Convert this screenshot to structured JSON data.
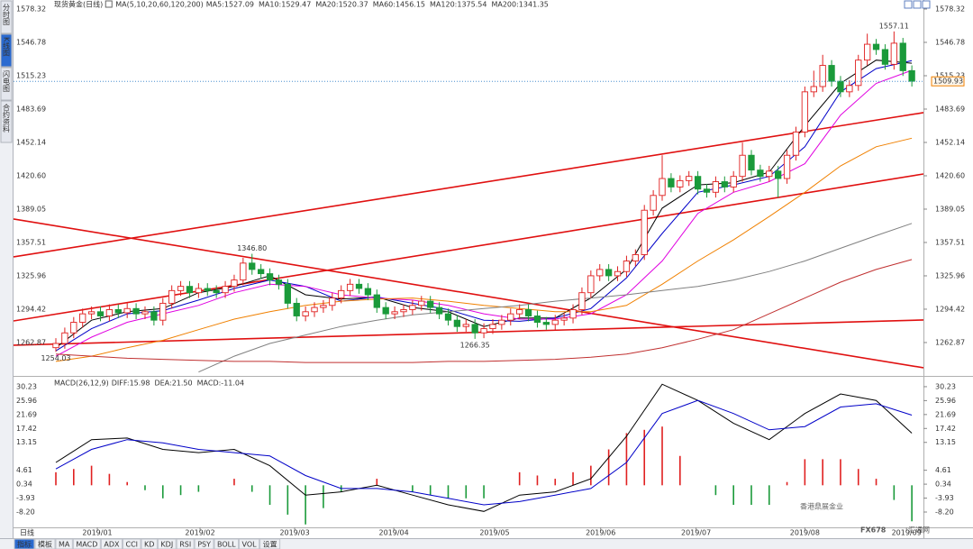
{
  "chart_data": [
    {
      "type": "candlestick",
      "title": "现货黄金(日线)",
      "subtitle": "MA(5,10,20,60,120,200)",
      "xlim": [
        -4.75,
        97.3
      ],
      "ylim": [
        1233,
        1578.32
      ],
      "yticks": [
        1578.32,
        1546.78,
        1515.23,
        1483.69,
        1452.14,
        {
          "value": 1420.6,
          "label": "1420.60"
        },
        1389.05,
        1357.51,
        1325.96,
        1294.42,
        1262.87
      ],
      "grid": false,
      "up_color": "#e02020",
      "down_color": "#1a9a3a",
      "x": [
        0,
        1,
        2,
        3,
        4,
        5,
        6,
        7,
        8,
        9,
        10,
        11,
        12,
        13,
        14,
        15,
        16,
        17,
        18,
        19,
        20,
        21,
        22,
        23,
        24,
        25,
        26,
        27,
        28,
        29,
        30,
        31,
        32,
        33,
        34,
        35,
        36,
        37,
        38,
        39,
        40,
        41,
        42,
        43,
        44,
        45,
        46,
        47,
        48,
        49,
        50,
        51,
        52,
        53,
        54,
        55,
        56,
        57,
        58,
        59,
        60,
        61,
        62,
        63,
        64,
        65,
        66,
        67,
        68,
        69,
        70,
        71,
        72,
        73,
        74,
        75,
        76,
        77,
        78,
        79,
        80,
        81,
        82,
        83,
        84,
        85,
        86,
        87,
        88,
        89,
        90,
        91,
        92,
        93,
        94,
        95,
        96
      ],
      "open": [
        1258,
        1262,
        1272,
        1282,
        1290,
        1292,
        1288,
        1294,
        1291,
        1295,
        1290,
        1292,
        1284,
        1300,
        1312,
        1316,
        1310,
        1314,
        1312,
        1310,
        1316,
        1322,
        1338,
        1332,
        1328,
        1322,
        1318,
        1300,
        1288,
        1292,
        1296,
        1298,
        1305,
        1312,
        1318,
        1314,
        1308,
        1296,
        1290,
        1292,
        1294,
        1298,
        1302,
        1296,
        1290,
        1284,
        1278,
        1280,
        1272,
        1276,
        1280,
        1284,
        1290,
        1294,
        1288,
        1282,
        1280,
        1284,
        1286,
        1294,
        1310,
        1326,
        1332,
        1326,
        1330,
        1340,
        1346,
        1388,
        1402,
        1418,
        1410,
        1416,
        1420,
        1408,
        1405,
        1415,
        1410,
        1420,
        1440,
        1426,
        1420,
        1425,
        1418,
        1440,
        1462,
        1500,
        1505,
        1525,
        1510,
        1500,
        1506,
        1530,
        1545,
        1540,
        1526,
        1546,
        1520
      ],
      "high": [
        1267,
        1277,
        1287,
        1295,
        1297,
        1297,
        1299,
        1299,
        1300,
        1300,
        1297,
        1297,
        1305,
        1317,
        1321,
        1321,
        1319,
        1319,
        1317,
        1321,
        1327,
        1343,
        1346.8,
        1337,
        1333,
        1327,
        1323,
        1305,
        1297,
        1301,
        1303,
        1310,
        1317,
        1323,
        1323,
        1319,
        1313,
        1301,
        1297,
        1299,
        1303,
        1307,
        1307,
        1301,
        1295,
        1289,
        1285,
        1285,
        1281,
        1285,
        1289,
        1295,
        1299,
        1299,
        1293,
        1287,
        1289,
        1291,
        1299,
        1315,
        1331,
        1337,
        1337,
        1335,
        1345,
        1351,
        1393,
        1407,
        1440,
        1423,
        1421,
        1425,
        1425,
        1413,
        1420,
        1420,
        1425,
        1452,
        1445,
        1431,
        1430,
        1430,
        1445,
        1467,
        1505,
        1520,
        1535,
        1530,
        1515,
        1511,
        1535,
        1555,
        1550,
        1545,
        1557.11,
        1551,
        1525
      ],
      "low": [
        1254.03,
        1257,
        1267,
        1277,
        1285,
        1283,
        1283,
        1286,
        1286,
        1285,
        1285,
        1279,
        1279,
        1295,
        1307,
        1305,
        1305,
        1307,
        1305,
        1305,
        1311,
        1317,
        1327,
        1323,
        1317,
        1313,
        1295,
        1283,
        1283,
        1287,
        1291,
        1293,
        1300,
        1307,
        1309,
        1303,
        1291,
        1285,
        1285,
        1287,
        1289,
        1293,
        1291,
        1285,
        1279,
        1273,
        1273,
        1266.35,
        1267,
        1271,
        1275,
        1279,
        1285,
        1283,
        1277,
        1275,
        1275,
        1279,
        1281,
        1289,
        1305,
        1321,
        1321,
        1321,
        1325,
        1335,
        1341,
        1383,
        1397,
        1405,
        1405,
        1411,
        1403,
        1400,
        1400,
        1405,
        1405,
        1415,
        1421,
        1415,
        1415,
        1400,
        1413,
        1435,
        1457,
        1495,
        1500,
        1505,
        1495,
        1495,
        1501,
        1525,
        1535,
        1521,
        1521,
        1515,
        1505
      ],
      "close": [
        1262,
        1272,
        1282,
        1290,
        1292,
        1288,
        1294,
        1291,
        1295,
        1290,
        1292,
        1284,
        1300,
        1312,
        1316,
        1310,
        1314,
        1312,
        1310,
        1316,
        1322,
        1338,
        1332,
        1328,
        1322,
        1318,
        1300,
        1288,
        1292,
        1296,
        1298,
        1305,
        1312,
        1318,
        1314,
        1308,
        1296,
        1290,
        1292,
        1294,
        1298,
        1302,
        1296,
        1290,
        1284,
        1278,
        1280,
        1272,
        1276,
        1280,
        1284,
        1290,
        1294,
        1288,
        1282,
        1280,
        1284,
        1286,
        1294,
        1310,
        1326,
        1332,
        1326,
        1330,
        1340,
        1346,
        1388,
        1402,
        1418,
        1410,
        1416,
        1420,
        1408,
        1405,
        1415,
        1410,
        1420,
        1440,
        1426,
        1420,
        1425,
        1418,
        1440,
        1462,
        1500,
        1505,
        1525,
        1510,
        1500,
        1506,
        1530,
        1545,
        1540,
        1526,
        1546,
        1520,
        1510
      ],
      "series": [
        {
          "name": "MA5:1527.09",
          "color": "#000000",
          "x": [
            0,
            4,
            8,
            12,
            16,
            20,
            24,
            28,
            32,
            36,
            40,
            44,
            48,
            52,
            56,
            60,
            64,
            68,
            72,
            76,
            80,
            84,
            88,
            92,
            96
          ],
          "values": [
            1258,
            1284,
            1292,
            1295,
            1310,
            1316,
            1326,
            1308,
            1304,
            1306,
            1296,
            1292,
            1278,
            1286,
            1286,
            1305,
            1332,
            1390,
            1412,
            1414,
            1424,
            1468,
            1508,
            1530,
            1527.09
          ]
        },
        {
          "name": "MA10:1529.47",
          "color": "#0000c8",
          "x": [
            0,
            4,
            8,
            12,
            16,
            20,
            24,
            28,
            32,
            36,
            40,
            44,
            48,
            52,
            56,
            60,
            64,
            68,
            72,
            76,
            80,
            84,
            88,
            92,
            96
          ],
          "values": [
            1255,
            1276,
            1290,
            1293,
            1303,
            1314,
            1322,
            1316,
            1302,
            1306,
            1300,
            1294,
            1284,
            1283,
            1286,
            1295,
            1324,
            1366,
            1405,
            1412,
            1420,
            1448,
            1500,
            1522,
            1529.47
          ]
        },
        {
          "name": "MA20:1520.37",
          "color": "#e000e0",
          "x": [
            0,
            4,
            8,
            12,
            16,
            20,
            24,
            28,
            32,
            36,
            40,
            44,
            48,
            52,
            56,
            60,
            64,
            68,
            72,
            76,
            80,
            84,
            88,
            92,
            96
          ],
          "values": [
            1250,
            1268,
            1282,
            1290,
            1298,
            1310,
            1318,
            1316,
            1308,
            1305,
            1303,
            1298,
            1290,
            1285,
            1285,
            1290,
            1308,
            1340,
            1385,
            1405,
            1415,
            1432,
            1478,
            1508,
            1520.37
          ]
        },
        {
          "name": "MA60:1456.15",
          "color": "#f08000",
          "x": [
            0,
            4,
            8,
            12,
            16,
            20,
            24,
            28,
            32,
            36,
            40,
            44,
            48,
            52,
            56,
            60,
            64,
            68,
            72,
            76,
            80,
            84,
            88,
            92,
            96
          ],
          "values": [
            1245,
            1250,
            1258,
            1265,
            1275,
            1285,
            1292,
            1298,
            1302,
            1304,
            1305,
            1302,
            1298,
            1295,
            1292,
            1292,
            1298,
            1318,
            1340,
            1360,
            1382,
            1405,
            1430,
            1448,
            1456.15
          ]
        },
        {
          "name": "MA120:1375.54",
          "color": "#808080",
          "x": [
            0,
            4,
            8,
            12,
            16,
            20,
            24,
            28,
            32,
            36,
            40,
            44,
            48,
            52,
            56,
            60,
            64,
            68,
            72,
            76,
            80,
            84,
            88,
            92,
            96
          ],
          "values": [
            null,
            null,
            null,
            null,
            1235,
            1250,
            1262,
            1270,
            1278,
            1284,
            1289,
            1292,
            1295,
            1298,
            1302,
            1305,
            1308,
            1312,
            1316,
            1322,
            1330,
            1340,
            1352,
            1364,
            1375.54
          ]
        },
        {
          "name": "MA200:1341.35",
          "color": "#c03030",
          "x": [
            0,
            4,
            8,
            12,
            16,
            20,
            24,
            28,
            32,
            36,
            40,
            44,
            48,
            52,
            56,
            60,
            64,
            68,
            72,
            76,
            80,
            84,
            88,
            92,
            96
          ],
          "values": [
            1252,
            1250,
            1248,
            1247,
            1246,
            1245,
            1245,
            1244,
            1244,
            1244,
            1244,
            1245,
            1245,
            1246,
            1247,
            1249,
            1252,
            1258,
            1266,
            1275,
            1290,
            1305,
            1320,
            1332,
            1341.35
          ]
        }
      ],
      "trend_color": "#e01010",
      "trend_lines": [
        {
          "x": [
            -4.75,
            97.3
          ],
          "y": [
            1343.9,
            1480.3
          ]
        },
        {
          "x": [
            -4.75,
            97.3
          ],
          "y": [
            1283.3,
            1422.3
          ]
        },
        {
          "x": [
            -4.75,
            97.3
          ],
          "y": [
            1379.7,
            1239.0
          ]
        },
        {
          "x": [
            -4.75,
            97.3
          ],
          "y": [
            1260.3,
            1284.2
          ]
        }
      ],
      "annotations": [
        {
          "label": "1346.80",
          "value": 1346.8,
          "x": 22,
          "position": "above",
          "color": "#e04040"
        },
        {
          "label": "1266.35",
          "value": 1266.35,
          "x": 47,
          "position": "below",
          "color": "#2a9a4a"
        },
        {
          "label": "1557.11",
          "value": 1557.11,
          "x": 94,
          "position": "above",
          "color": "#e04040"
        },
        {
          "label": "1254.03",
          "value": 1254.03,
          "x": 0,
          "position": "below",
          "color": "#999999"
        }
      ],
      "last_price": 1509.93,
      "last_price_color": "#f08000"
    },
    {
      "type": "macd",
      "title": "MACD(26,12,9)",
      "xlim": [
        -4.75,
        97.3
      ],
      "ylim": [
        -12.9,
        32.7
      ],
      "yticks": [
        30.23,
        25.96,
        21.69,
        17.42,
        13.15,
        4.61,
        0.34,
        -3.93,
        {
          "value": -8.2,
          "label": "-8.20"
        }
      ],
      "xticks": [
        {
          "value": 4.65,
          "label": "2019/01"
        },
        {
          "value": 16.17,
          "label": "2019/02"
        },
        {
          "value": 26.78,
          "label": "2019/03"
        },
        {
          "value": 37.9,
          "label": "2019/04"
        },
        {
          "value": 49.2,
          "label": "2019/05"
        },
        {
          "value": 61.1,
          "label": "2019/06"
        },
        {
          "value": 71.8,
          "label": "2019/07"
        },
        {
          "value": 84.0,
          "label": "2019/08"
        },
        {
          "value": 95.4,
          "label": "2019/09"
        }
      ],
      "series": [
        {
          "name": "DIFF:15.98",
          "color": "#000000",
          "x": [
            0,
            4,
            8,
            12,
            16,
            20,
            24,
            28,
            32,
            36,
            40,
            44,
            48,
            52,
            56,
            60,
            64,
            68,
            72,
            76,
            80,
            84,
            88,
            92,
            96
          ],
          "values": [
            7,
            14,
            14.5,
            11,
            10,
            11,
            6,
            -3,
            -2,
            0,
            -3,
            -6,
            -8,
            -3,
            -2,
            2,
            15,
            31,
            26,
            19,
            14,
            22,
            28,
            26,
            15.98
          ]
        },
        {
          "name": "DEA:21.50",
          "color": "#0000c8",
          "x": [
            0,
            4,
            8,
            12,
            16,
            20,
            24,
            28,
            32,
            36,
            40,
            44,
            48,
            52,
            56,
            60,
            64,
            68,
            72,
            76,
            80,
            84,
            88,
            92,
            96
          ],
          "values": [
            5,
            11,
            14,
            13,
            11,
            10,
            9,
            3,
            -1,
            -1,
            -2,
            -4,
            -6,
            -5,
            -3,
            -1,
            7,
            22,
            26,
            22,
            17,
            18,
            24,
            25,
            21.5
          ]
        }
      ],
      "histogram": {
        "name": "MACD:-11.04",
        "color": "#e000e0",
        "up_color": "#e02020",
        "down_color": "#1a9a3a",
        "x": [
          0,
          2,
          4,
          6,
          8,
          10,
          12,
          14,
          16,
          18,
          20,
          22,
          24,
          26,
          28,
          30,
          32,
          34,
          36,
          38,
          40,
          42,
          44,
          46,
          48,
          50,
          52,
          54,
          56,
          58,
          60,
          62,
          64,
          66,
          68,
          70,
          72,
          74,
          76,
          78,
          80,
          82,
          84,
          86,
          88,
          90,
          92,
          94,
          96
        ],
        "values": [
          4,
          5,
          6,
          3.5,
          1,
          -1.5,
          -4,
          -3,
          -2,
          0,
          2,
          -2,
          -6,
          -9,
          -12,
          -7,
          -2,
          0,
          2,
          0,
          -2,
          -3,
          -4,
          -4,
          -4,
          0,
          4,
          3,
          2,
          4,
          6,
          11,
          16,
          17,
          18,
          9,
          0,
          -3,
          -6,
          -6,
          -6,
          1,
          8,
          8,
          8,
          5,
          2,
          -4.5,
          -11.04
        ]
      }
    }
  ],
  "ui": {
    "sidebar_tabs": [
      "分时图",
      "K线图",
      "闪电图",
      "合约资料"
    ],
    "sidebar_active": 1,
    "period_label": "日线",
    "bottom_tabs": [
      "指标",
      "模板",
      "MA",
      "MACD",
      "ADX",
      "CCI",
      "KD",
      "KDJ",
      "RSI",
      "PSY",
      "BOLL",
      "VOL",
      "设置"
    ],
    "bottom_active": 0,
    "watermark": "香港鼎展金业",
    "logo": "FX678",
    "logo_sub": "汇通网"
  }
}
